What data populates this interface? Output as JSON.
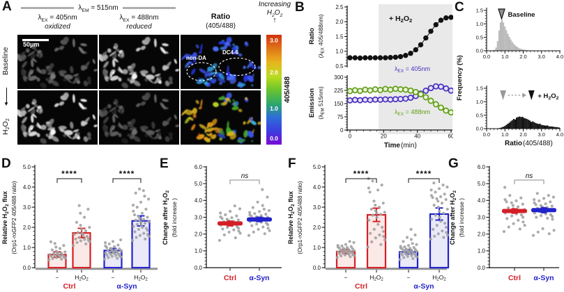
{
  "colors": {
    "red": "#d41f26",
    "blue": "#2222cc",
    "red_fill": "#fae9e7",
    "blue_fill": "#e9e9f8",
    "purple": "#4a2fc0",
    "green": "#5f9e14",
    "purple_fill": "#e4e1f7",
    "green_fill": "#eef3df",
    "shade": "#e9e9e9",
    "dot": "#a2a2a2",
    "hist_gray": "#b9b9b9",
    "hist_black": "#141414",
    "bar_baseline": "#9a9a9a",
    "colorbar_stops": [
      "#d2320f",
      "#e07818",
      "#e8b41c",
      "#bcdc20",
      "#6cc42c",
      "#2ca86c",
      "#2e6ed8",
      "#3c3ce0",
      "#7a0bd4"
    ]
  },
  "panels": {
    "a": {
      "label": "A",
      "em_header": "λ_{EM} = 515nm",
      "columns": [
        {
          "title": "λ_{EX} = 405nm",
          "subtitle": "oxidized"
        },
        {
          "title": "λ_{EX} = 488nm",
          "subtitle": "reduced"
        },
        {
          "title": "Ratio",
          "subtitle": "(405/488)"
        }
      ],
      "increasing": [
        "Increasing",
        "H_{2}O_{2}"
      ],
      "up_arrow": "↑",
      "rows": [
        "Baseline",
        "H_{2}O_{2}"
      ],
      "row_arrow": "▼",
      "scalebar": "50μm",
      "regions": [
        "non-DA",
        "DC4-6"
      ],
      "colorbar": {
        "ticks": [
          "3.0",
          "2.0",
          "1.0",
          "0.0"
        ],
        "side": "405/488"
      }
    },
    "b": {
      "label": "B"
    },
    "c": {
      "label": "C"
    },
    "d": {
      "label": "D"
    },
    "e": {
      "label": "E"
    },
    "f": {
      "label": "F"
    },
    "g": {
      "label": "G"
    }
  },
  "chart_data": {
    "b_ratio": {
      "type": "line",
      "x": [
        0,
        3,
        6,
        9,
        12,
        15,
        18,
        21,
        24,
        27,
        30,
        33,
        36,
        39,
        42,
        45,
        48,
        51,
        54,
        57,
        60
      ],
      "values": [
        0.78,
        0.78,
        0.77,
        0.78,
        0.78,
        0.78,
        0.78,
        0.78,
        0.79,
        0.8,
        0.82,
        0.86,
        0.93,
        1.05,
        1.22,
        1.45,
        1.68,
        1.9,
        2.05,
        2.13,
        2.15
      ],
      "ylim": [
        0.5,
        2.5
      ],
      "yticks": [
        0.5,
        1.0,
        1.5,
        2.0,
        2.5
      ],
      "shade_start": 17,
      "annotation": "+ H_{2}O_{2}",
      "ylabel_bold": "Ratio",
      "ylabel": "(λ_{EX} 405/488nm)"
    },
    "b_emission": {
      "type": "line",
      "x": [
        0,
        3,
        6,
        9,
        12,
        15,
        18,
        21,
        24,
        27,
        30,
        33,
        36,
        39,
        42,
        45,
        48,
        51,
        54,
        57,
        60
      ],
      "series": [
        {
          "name": "λ_{EX} = 405nm",
          "color": "purple",
          "err": 4,
          "values": [
            168,
            171,
            169,
            172,
            170,
            173,
            172,
            174,
            173,
            175,
            176,
            178,
            183,
            193,
            207,
            223,
            238,
            248,
            246,
            236,
            224
          ]
        },
        {
          "name": "λ_{EX} =  488nm",
          "color": "green",
          "err": 7,
          "values": [
            221,
            226,
            222,
            229,
            225,
            231,
            227,
            233,
            229,
            234,
            231,
            229,
            224,
            216,
            203,
            186,
            166,
            146,
            127,
            110,
            100
          ]
        }
      ],
      "ylim": [
        0,
        300
      ],
      "yticks": [
        0,
        75,
        150,
        225,
        300
      ],
      "xticks": [
        0,
        20,
        40,
        60
      ],
      "ylabel_bold": "Emission",
      "ylabel": "(λ_{EM}  515nm)",
      "xlabel_bold": "Time",
      "xlabel": " (min)"
    },
    "c_ylabel": "Frequency (%)",
    "c_top": {
      "type": "histogram",
      "bin_start": 0,
      "bin_step": 0.08,
      "values": [
        0,
        0,
        0,
        0,
        0.01,
        0.04,
        0.12,
        0.35,
        0.75,
        1.05,
        1.15,
        1.05,
        0.9,
        0.76,
        0.63,
        0.52,
        0.42,
        0.33,
        0.26,
        0.2,
        0.16,
        0.12,
        0.09,
        0.07,
        0.05,
        0.04,
        0.03,
        0.02,
        0.02,
        0.01,
        0.01,
        0.01,
        0,
        0,
        0,
        0,
        0,
        0,
        0,
        0,
        0,
        0,
        0,
        0,
        0,
        0,
        0,
        0,
        0,
        0
      ],
      "ylim": [
        0,
        1.5
      ],
      "yticks": [
        0,
        0.5,
        1.0,
        1.5
      ],
      "xticks": [
        0,
        1,
        2,
        3,
        4
      ],
      "marker_ratio": 0.82,
      "marker_label": "Baseline"
    },
    "c_bottom": {
      "type": "histogram",
      "bin_start": 0,
      "bin_step": 0.08,
      "values": [
        0,
        0,
        0,
        0,
        0,
        0,
        0,
        0.01,
        0.02,
        0.03,
        0.05,
        0.07,
        0.1,
        0.14,
        0.18,
        0.22,
        0.27,
        0.31,
        0.36,
        0.34,
        0.41,
        0.43,
        0.45,
        0.43,
        0.44,
        0.4,
        0.38,
        0.36,
        0.33,
        0.3,
        0.25,
        0.27,
        0.24,
        0.21,
        0.19,
        0.17,
        0.18,
        0.14,
        0.13,
        0.12,
        0.11,
        0.12,
        0.09,
        0.08,
        0.08,
        0.07,
        0.06,
        0.06,
        0.05,
        0.04
      ],
      "ylim": [
        0,
        1.5
      ],
      "yticks": [
        0,
        0.5,
        1.0,
        1.5
      ],
      "xticks": [
        0,
        1,
        2,
        3,
        4
      ],
      "arrow_from": 0.9,
      "arrow_to": 2.3,
      "annotation": "+ H_{2}O_{2}",
      "xlabel_bold": "Ratio",
      "xlabel": " (405/488)"
    },
    "d": {
      "type": "bar",
      "ylim": [
        0,
        5
      ],
      "ylabel_bold": "Relative H_{2}O_{2} flux",
      "ylabel": "(Orp1-roGFP2 405/488 ratio)",
      "groups": [
        {
          "label": "Ctrl",
          "color": "red",
          "sig": "****",
          "bars": [
            {
              "tick": "−",
              "mean": 0.65,
              "err": 0.13,
              "points": [
                0.38,
                0.42,
                0.45,
                0.48,
                0.5,
                0.52,
                0.54,
                0.56,
                0.58,
                0.6,
                0.62,
                0.63,
                0.65,
                0.67,
                0.7,
                0.72,
                0.75,
                0.78,
                0.82,
                0.88,
                0.95,
                1.02,
                1.1,
                1.2,
                1.28
              ]
            },
            {
              "tick": "H_{2}O_{2}",
              "mean": 1.72,
              "err": 0.23,
              "points": [
                1.1,
                1.18,
                1.25,
                1.3,
                1.33,
                1.36,
                1.4,
                1.42,
                1.45,
                1.5,
                1.55,
                1.6,
                1.65,
                1.7,
                1.75,
                1.82,
                1.9,
                2.0,
                2.1,
                2.25,
                2.5,
                2.7,
                2.9,
                3.08
              ]
            }
          ]
        },
        {
          "label": "α-Syn",
          "color": "blue",
          "sig": "****",
          "bars": [
            {
              "tick": "−",
              "mean": 0.85,
              "err": 0.1,
              "points": [
                0.42,
                0.46,
                0.5,
                0.53,
                0.56,
                0.58,
                0.6,
                0.62,
                0.64,
                0.66,
                0.68,
                0.7,
                0.72,
                0.74,
                0.76,
                0.78,
                0.8,
                0.82,
                0.84,
                0.86,
                0.88,
                0.9,
                0.93,
                0.96,
                1.0,
                1.04,
                1.08,
                1.12,
                1.18,
                1.24,
                1.3,
                1.38
              ]
            },
            {
              "tick": "H_{2}O_{2}",
              "mean": 2.32,
              "err": 0.25,
              "points": [
                1.35,
                1.42,
                1.5,
                1.55,
                1.6,
                1.65,
                1.7,
                1.78,
                1.85,
                1.9,
                1.95,
                2.0,
                2.05,
                2.1,
                2.15,
                2.2,
                2.25,
                2.28,
                2.32,
                2.36,
                2.4,
                2.45,
                2.5,
                2.55,
                2.62,
                2.7,
                2.8,
                2.9,
                3.0,
                3.1,
                3.25,
                3.4,
                3.55,
                3.7,
                3.82,
                3.9
              ]
            }
          ]
        }
      ]
    },
    "e": {
      "type": "dot",
      "ylim": [
        0,
        6
      ],
      "ylabel_bold": "Change after H_{2}O_{2}",
      "ylabel": "(fold increase )",
      "sig": "ns",
      "groups": [
        {
          "label": "Ctrl",
          "color": "red",
          "mean": 2.63,
          "err": 0.14,
          "points": [
            1.62,
            1.78,
            1.95,
            2.05,
            2.12,
            2.18,
            2.25,
            2.3,
            2.35,
            2.4,
            2.45,
            2.5,
            2.53,
            2.56,
            2.6,
            2.62,
            2.65,
            2.68,
            2.7,
            2.73,
            2.76,
            2.8,
            2.84,
            2.88,
            2.92,
            2.97,
            3.02,
            3.08,
            3.15,
            3.25,
            3.35,
            3.5,
            3.68
          ]
        },
        {
          "label": "α-Syn",
          "color": "blue",
          "mean": 2.87,
          "err": 0.13,
          "points": [
            1.92,
            2.02,
            2.12,
            2.2,
            2.28,
            2.35,
            2.42,
            2.5,
            2.56,
            2.6,
            2.65,
            2.7,
            2.74,
            2.78,
            2.8,
            2.83,
            2.86,
            2.88,
            2.9,
            2.93,
            2.96,
            2.98,
            3.0,
            3.03,
            3.06,
            3.1,
            3.14,
            3.18,
            3.22,
            3.28,
            3.34,
            3.4,
            3.48,
            3.58,
            3.7,
            3.9,
            4.2,
            4.65
          ]
        }
      ]
    },
    "f": {
      "type": "bar",
      "ylim": [
        0,
        5
      ],
      "ylabel_bold": "Relative H_{2}O_{2} flux",
      "ylabel": "(Orp1-roGFP2 405/488 ratio)",
      "groups": [
        {
          "label": "Ctrl",
          "color": "red",
          "sig": "****",
          "bars": [
            {
              "tick": "−",
              "mean": 0.8,
              "err": 0.1,
              "points": [
                0.5,
                0.55,
                0.58,
                0.6,
                0.63,
                0.65,
                0.67,
                0.69,
                0.71,
                0.73,
                0.75,
                0.76,
                0.78,
                0.79,
                0.8,
                0.82,
                0.83,
                0.85,
                0.86,
                0.88,
                0.9,
                0.92,
                0.94,
                0.96,
                0.98,
                1.0,
                1.02,
                1.05,
                1.08,
                1.1,
                1.15,
                1.25,
                1.3
              ]
            },
            {
              "tick": "H_{2}O_{2}",
              "mean": 2.62,
              "err": 0.33,
              "points": [
                1.02,
                1.15,
                1.28,
                1.38,
                1.48,
                1.55,
                1.62,
                1.7,
                1.8,
                1.9,
                2.0,
                2.15,
                2.35,
                2.5,
                2.6,
                2.65,
                2.7,
                2.75,
                2.82,
                2.9,
                3.0,
                3.1,
                3.2,
                3.3,
                3.75,
                3.85,
                3.95,
                4.1,
                4.3,
                4.42
              ]
            }
          ]
        },
        {
          "label": "α-Syn",
          "color": "blue",
          "sig": "****",
          "bars": [
            {
              "tick": "−",
              "mean": 0.78,
              "err": 0.1,
              "points": [
                0.4,
                0.45,
                0.5,
                0.53,
                0.56,
                0.58,
                0.6,
                0.63,
                0.65,
                0.67,
                0.69,
                0.71,
                0.73,
                0.75,
                0.76,
                0.78,
                0.8,
                0.81,
                0.83,
                0.85,
                0.86,
                0.88,
                0.9,
                0.92,
                0.94,
                0.96,
                0.98,
                1.0,
                1.03,
                1.06,
                1.1,
                1.15,
                1.2,
                1.3,
                1.4,
                1.5,
                1.62,
                1.9
              ]
            },
            {
              "tick": "H_{2}O_{2}",
              "mean": 2.66,
              "err": 0.3,
              "points": [
                1.42,
                1.5,
                1.56,
                1.62,
                1.68,
                1.75,
                1.82,
                1.9,
                2.0,
                2.1,
                2.2,
                2.3,
                2.4,
                2.5,
                2.6,
                2.7,
                2.8,
                2.9,
                3.0,
                3.1,
                3.2,
                3.3,
                3.38,
                3.42,
                3.48,
                3.52,
                3.58,
                3.65,
                3.75,
                3.85,
                3.92,
                4.0,
                4.1,
                4.2
              ]
            }
          ]
        }
      ]
    },
    "g": {
      "type": "dot",
      "ylim": [
        0,
        6
      ],
      "ylabel_bold": "Change after H_{2}O_{2}",
      "ylabel": "(fold increase )",
      "sig": "ns",
      "groups": [
        {
          "label": "Ctrl",
          "color": "red",
          "mean": 3.37,
          "err": 0.13,
          "points": [
            2.15,
            2.3,
            2.42,
            2.52,
            2.62,
            2.72,
            2.82,
            2.92,
            3.0,
            3.08,
            3.14,
            3.2,
            3.25,
            3.3,
            3.35,
            3.38,
            3.42,
            3.46,
            3.5,
            3.56,
            3.62,
            3.7,
            3.78,
            3.86,
            3.92,
            3.98,
            4.05,
            4.15,
            4.3,
            4.78
          ]
        },
        {
          "label": "α-Syn",
          "color": "blue",
          "mean": 3.42,
          "err": 0.15,
          "points": [
            1.92,
            2.02,
            2.12,
            2.22,
            2.32,
            2.88,
            2.94,
            3.0,
            3.05,
            3.1,
            3.15,
            3.2,
            3.25,
            3.3,
            3.34,
            3.38,
            3.42,
            3.46,
            3.5,
            3.54,
            3.58,
            3.62,
            3.66,
            3.7,
            3.75,
            3.8,
            3.86,
            3.92,
            3.98,
            4.05,
            4.12,
            4.2,
            4.3,
            4.42
          ]
        }
      ]
    }
  }
}
